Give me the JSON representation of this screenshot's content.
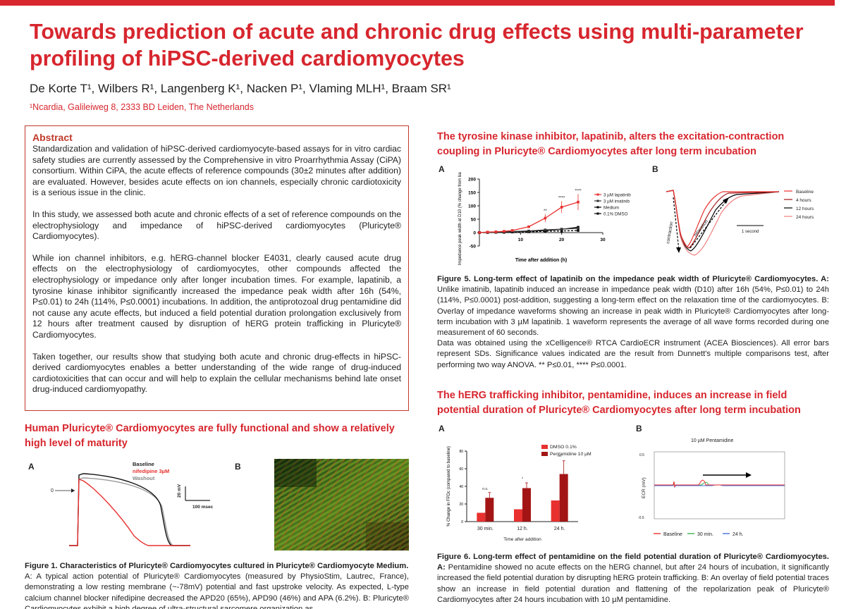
{
  "header": {
    "title_line1": "Towards prediction of acute and chronic drug effects using multi-parameter",
    "title_line2": "profiling of hiPSC-derived cardiomyocytes",
    "authors": "De Korte T¹, Wilbers R¹, Langenberg K¹, Nacken P¹, Vlaming MLH¹, Braam SR¹",
    "affiliation": "¹Ncardia, Galileiweg 8, 2333 BD Leiden, The Netherlands"
  },
  "abstract": {
    "heading": "Abstract",
    "p1": "Standardization and validation of hiPSC-derived cardiomyocyte-based assays for in vitro cardiac safety studies are currently assessed by the Comprehensive in vitro Proarrhythmia Assay (CiPA) consortium. Within CiPA, the acute effects of reference compounds (30±2 minutes after addition) are evaluated. However, besides acute effects on ion channels, especially chronic cardiotoxicity is a serious issue in the clinic.",
    "p2": "In this study, we assessed both acute and chronic effects of a set of reference compounds on the electrophysiology and impedance of hiPSC-derived cardiomyocytes (Pluricyte® Cardiomyocytes).",
    "p3": "While ion channel inhibitors, e.g. hERG-channel blocker E4031, clearly caused acute drug effects on the electrophysiology of cardiomyocytes, other compounds affected the electrophysiology or impedance only after longer incubation times. For example, lapatinib, a tyrosine kinase inhibitor significantly increased the impedance peak width after 16h (54%, P≤0.01) to 24h (114%, P≤0.0001) incubations. In addition, the antiprotozoal drug pentamidine did not cause any acute effects, but induced a field potential duration prolongation exclusively from 12 hours after treatment caused by disruption of hERG protein trafficking in Pluricyte® Cardiomyocytes.",
    "p4": "Taken together, our results show that studying both acute and chronic drug-effects in hiPSC-derived cardiomyocytes enables a better understanding of the wide range of drug-induced cardiotoxicities that can occur and will help to explain the cellular mechanisms behind late onset drug-induced cardiomyopathy."
  },
  "section1": {
    "title": "Human Pluricyte® Cardiomyocytes are fully functional and show a relatively high level of maturity",
    "panel_a": "A",
    "panel_b": "B",
    "legend": [
      "Baseline",
      "nifedipine 3µM",
      "Washout"
    ],
    "zero_label": "0",
    "scale_mv": "20 mV",
    "scale_ms": "100 msec",
    "caption_title": "Figure 1. Characteristics of Pluricyte® Cardiomyocytes cultured in Pluricyte® Cardiomyocyte Medium.",
    "caption_body": "A: A typical action potential of Pluricyte® Cardiomyocytes (measured by PhysioStim, Lautrec, France), demonstrating a low resting membrane (~-78mV) potential and fast upstroke velocity. As expected, L-type calcium channel blocker nifedipine decreased the APD20 (65%), APD90 (46%) and APA (6.2%). B: Pluricyte® Cardiomyocytes exhibit a high degree of ultra-structural sarcomere organization as"
  },
  "section2": {
    "title_line1": "The tyrosine kinase inhibitor, lapatinib, alters the excitation-contraction",
    "title_line2": "coupling in Pluricyte® Cardiomyocytes after long term incubation",
    "panel_a": "A",
    "panel_b": "B",
    "chart_data": {
      "type": "line",
      "ylabel": "Impedance peak width at D10 (% change from baseline)",
      "xlabel": "Time after addition (h)",
      "ylim": [
        -50,
        200
      ],
      "xlim": [
        0,
        30
      ],
      "yticks": [
        -50,
        0,
        50,
        100,
        150,
        200
      ],
      "xticks": [
        10,
        20,
        30
      ],
      "series": [
        {
          "name": "3 µM lapatinib",
          "color": "#e8312f",
          "x": [
            0,
            2,
            4,
            6,
            8,
            12,
            16,
            20,
            24
          ],
          "y": [
            0,
            2,
            3,
            5,
            8,
            22,
            54,
            95,
            114
          ]
        },
        {
          "name": "3 µM imatinib",
          "color": "#333333",
          "x": [
            0,
            2,
            4,
            6,
            8,
            12,
            16,
            20,
            24
          ],
          "y": [
            0,
            1,
            2,
            3,
            4,
            6,
            10,
            13,
            16
          ]
        },
        {
          "name": "Medium",
          "color": "#000000",
          "x": [
            0,
            2,
            4,
            6,
            8,
            12,
            16,
            20,
            24
          ],
          "y": [
            0,
            1,
            1,
            2,
            3,
            5,
            8,
            12,
            20
          ]
        },
        {
          "name": "0.1% DMSO",
          "color": "#000000",
          "x": [
            0,
            2,
            4,
            6,
            8,
            12,
            16,
            20,
            24
          ],
          "y": [
            0,
            0,
            1,
            1,
            2,
            3,
            5,
            6,
            8
          ]
        }
      ],
      "annotations": [
        "**",
        "****",
        "****"
      ]
    },
    "b_legend": [
      "Baseline",
      "4 hours",
      "12 hours",
      "24 hours"
    ],
    "b_contraction": "contraction",
    "b_relaxation": "relaxation",
    "b_scale": "1 second",
    "caption_title": "Figure 5. Long-term effect of lapatinib on the impedance peak width of Pluricyte® Cardiomyocytes.",
    "caption_a": " A:",
    "caption_body": "Unlike imatinib, lapatinib induced an increase in impedance peak width (D10) after 16h (54%, P≤0.01) to 24h (114%, P≤0.0001) post-addition, suggesting a long-term effect on the relaxation time of the cardiomyocytes. B: Overlay of impedance waveforms showing an increase in peak width in Pluricyte® Cardiomyocytes after long-term incubation with 3 µM lapatinib. 1 waveform represents the average of all wave forms recorded during one measurement of 60 seconds.",
    "caption_body2": "Data was obtained using the xCelligence® RTCA CardioECR instrument (ACEA Biosciences). All error bars represent SDs. Significance values indicated are the result from Dunnett's multiple comparisons test, after performing two way ANOVA. ** P≤0.01, **** P≤0.0001."
  },
  "section3": {
    "title_line1": "The hERG trafficking inhibitor, pentamidine, induces an increase in field",
    "title_line2": "potential duration of Pluricyte® Cardiomyocytes after long term incubation",
    "panel_a": "A",
    "panel_b": "B",
    "chart_data": {
      "type": "bar",
      "categories": [
        "30 min.",
        "12 h.",
        "24 h."
      ],
      "ylabel": "% Change in FPDc (compared to baseline)",
      "xlabel": "Time after addition",
      "ylim": [
        0,
        80
      ],
      "yticks": [
        0,
        20,
        40,
        60,
        80
      ],
      "series": [
        {
          "name": "DMSO 0.1%",
          "color": "#e8312f",
          "values": [
            10,
            14,
            24
          ]
        },
        {
          "name": "Pentamidine 10 µM",
          "color": "#a31515",
          "values": [
            27,
            38,
            54
          ]
        }
      ],
      "annotations": [
        "n.s.",
        "*",
        "***"
      ]
    },
    "b_title": "10 µM Pentamidine",
    "b_ylabel": "ECR (mV)",
    "b_ytop": "0.5",
    "b_ybottom": "-0.5",
    "b_legend": [
      "Baseline",
      "30 min.",
      "24 h."
    ],
    "caption_title": "Figure 6. Long-term effect of pentamidine on the field potential duration of Pluricyte® Cardiomyocytes. A:",
    "caption_body": "Pentamidine showed no acute effects on the hERG channel, but after 24 hours of incubation, it significantly increased the field potential duration by disrupting hERG protein trafficking. B: An overlay of field potential traces show an increase in field potential duration and flattening of the repolarization peak of Pluricyte® Cardiomyocytes after 24 hours incubation with 10 µM pentamidine."
  },
  "colors": {
    "accent": "#d7262e",
    "bar_light": "#e8312f",
    "bar_dark": "#a31515"
  }
}
